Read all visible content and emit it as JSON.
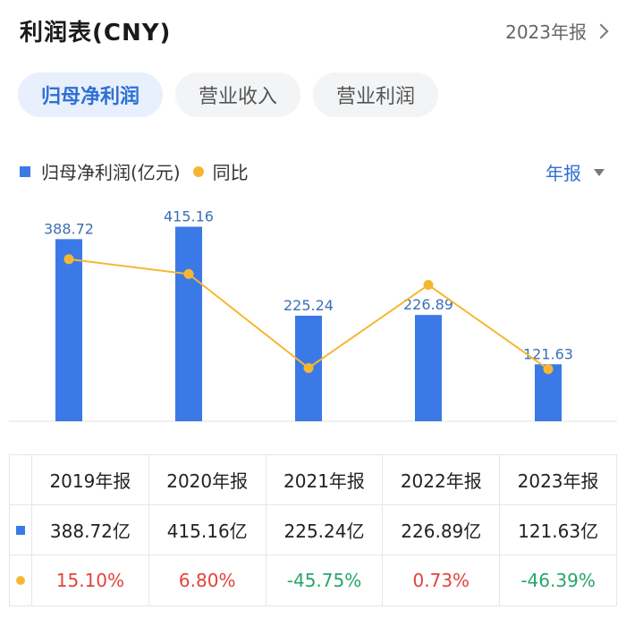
{
  "header": {
    "title": "利润表(CNY)",
    "report_period": "2023年报"
  },
  "tabs": [
    {
      "label": "归母净利润",
      "active": true
    },
    {
      "label": "营业收入",
      "active": false
    },
    {
      "label": "营业利润",
      "active": false
    }
  ],
  "legend": {
    "bar_label": "归母净利润(亿元)",
    "line_label": "同比"
  },
  "period_select": {
    "value": "年报"
  },
  "colors": {
    "bar": "#3b7ae6",
    "line": "#f5b731",
    "accent": "#2f6fd6",
    "positive": "#e0443c",
    "negative": "#27a56a"
  },
  "chart_data": {
    "type": "bar",
    "categories": [
      "2019年报",
      "2020年报",
      "2021年报",
      "2022年报",
      "2023年报"
    ],
    "series": [
      {
        "name": "归母净利润(亿元)",
        "type": "bar",
        "values": [
          388.72,
          415.16,
          225.24,
          226.89,
          121.63
        ]
      },
      {
        "name": "同比",
        "type": "line",
        "values": [
          15.1,
          6.8,
          -45.75,
          0.73,
          -46.39
        ]
      }
    ],
    "data_labels": [
      "388.72",
      "415.16",
      "225.24",
      "226.89",
      "121.63"
    ]
  },
  "table": {
    "headers": [
      "2019年报",
      "2020年报",
      "2021年报",
      "2022年报",
      "2023年报"
    ],
    "profit": [
      "388.72亿",
      "415.16亿",
      "225.24亿",
      "226.89亿",
      "121.63亿"
    ],
    "yoy": [
      "15.10%",
      "6.80%",
      "-45.75%",
      "0.73%",
      "-46.39%"
    ]
  }
}
